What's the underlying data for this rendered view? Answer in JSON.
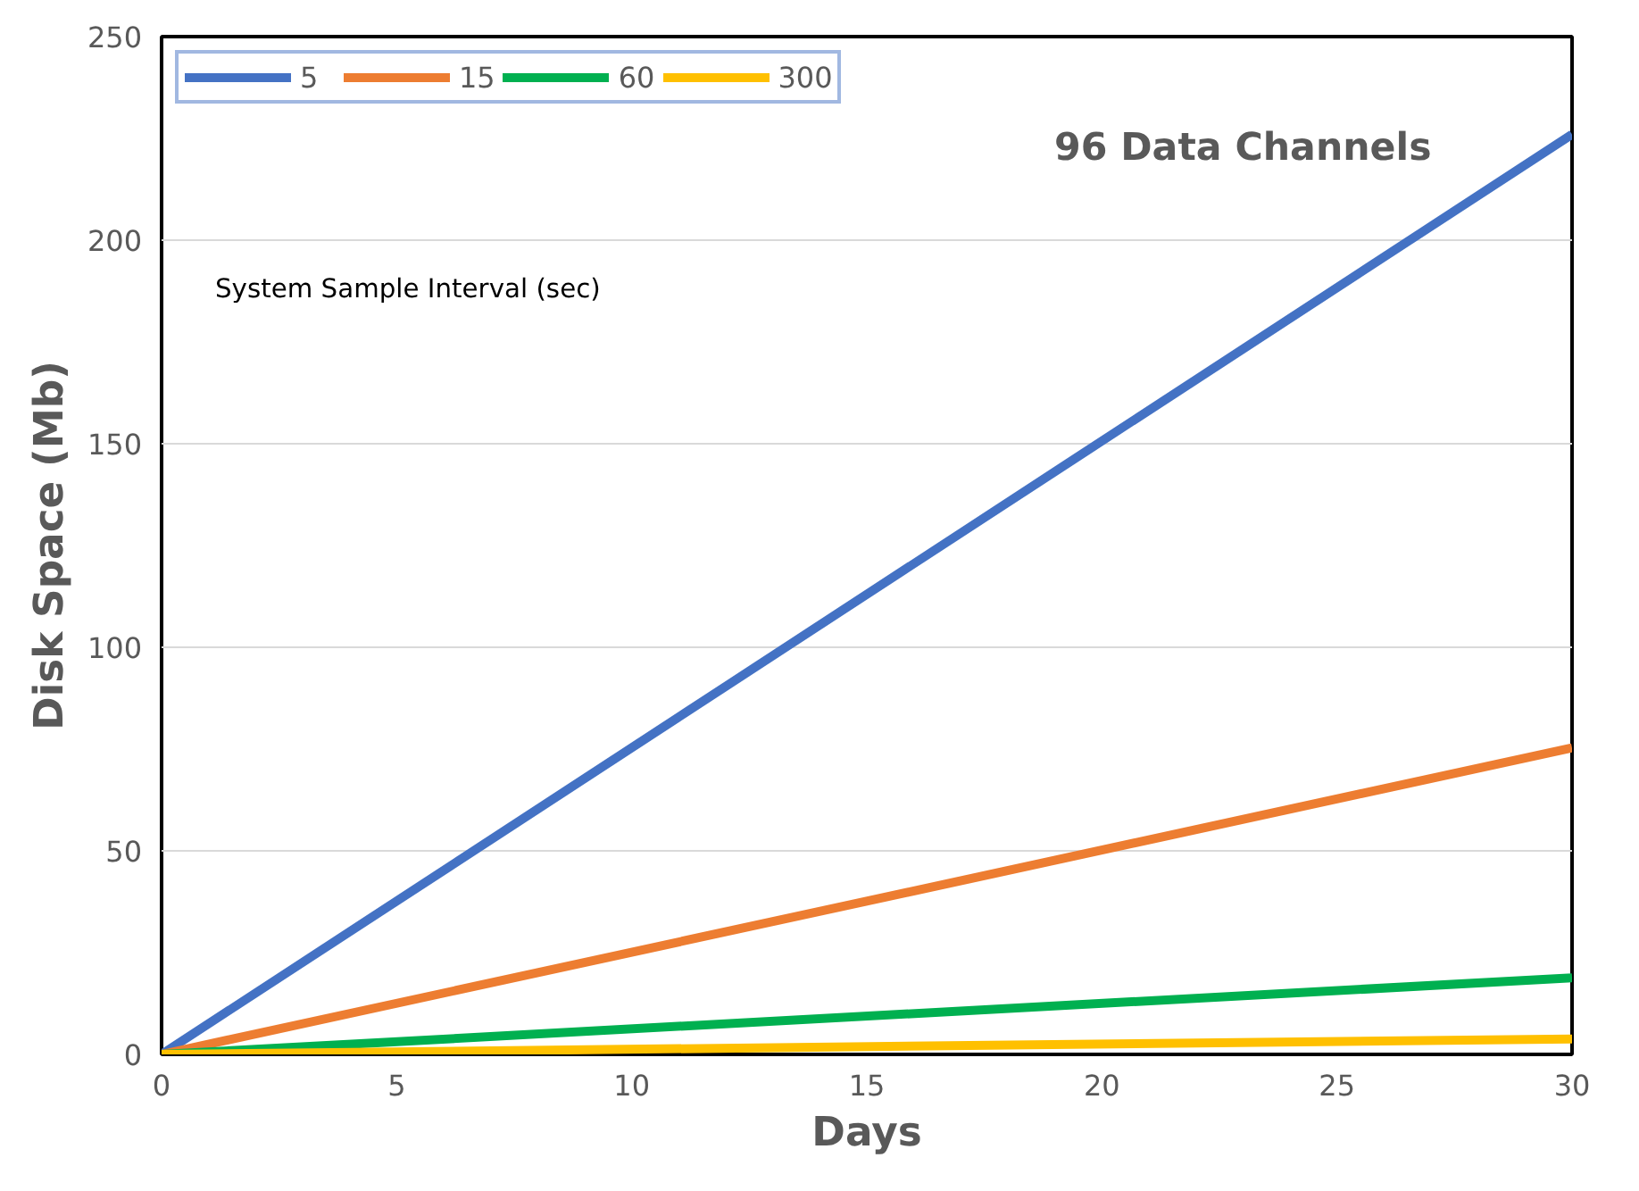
{
  "chart_data": {
    "type": "line",
    "xlabel": "Days",
    "ylabel": "Disk Space (Mb)",
    "legend_title": "System Sample Interval (sec)",
    "annotations": [
      "96 Data Channels"
    ],
    "x": [
      0,
      30
    ],
    "series": [
      {
        "name": "5",
        "color": "#4472c4",
        "values": [
          0,
          226
        ]
      },
      {
        "name": "15",
        "color": "#ed7d31",
        "values": [
          0,
          75.3
        ]
      },
      {
        "name": "60",
        "color": "#00b050",
        "values": [
          0,
          18.8
        ]
      },
      {
        "name": "300",
        "color": "#ffc000",
        "values": [
          0,
          3.8
        ]
      }
    ],
    "xlim": [
      0,
      30
    ],
    "xticks": [
      0,
      5,
      10,
      15,
      20,
      25,
      30
    ],
    "ylim": [
      0,
      250
    ],
    "yticks": [
      0,
      50,
      100,
      150,
      200,
      250
    ],
    "grid": "y",
    "legend": "top left",
    "line_style": "solid"
  }
}
